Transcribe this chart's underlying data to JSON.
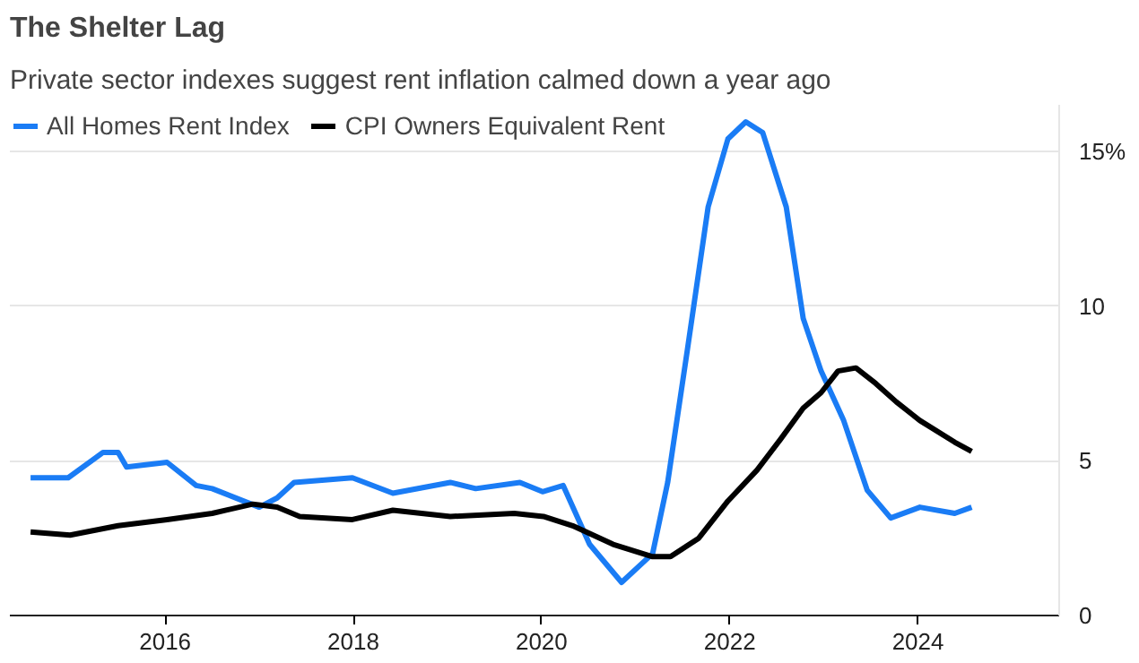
{
  "chart_data": {
    "type": "line",
    "title": "The Shelter Lag",
    "subtitle": "Private sector indexes suggest rent inflation calmed down a year ago",
    "xlim": [
      2014.35,
      2025.5
    ],
    "xticks": [
      {
        "value": 2016,
        "label": "2016"
      },
      {
        "value": 2018,
        "label": "2018"
      },
      {
        "value": 2020,
        "label": "2020"
      },
      {
        "value": 2022,
        "label": "2022"
      },
      {
        "value": 2024,
        "label": "2024"
      }
    ],
    "ylim": [
      0,
      16.5
    ],
    "yticks": [
      0,
      5,
      10,
      {
        "value": 15,
        "label": "15%"
      }
    ],
    "grid": "y",
    "legend": "top left",
    "line_style": "solid",
    "series": [
      {
        "name": "All Homes Rent Index",
        "color": "#1a7cf5",
        "x": [
          2014.57,
          2014.97,
          2015.34,
          2015.5,
          2015.59,
          2016.02,
          2016.33,
          2016.5,
          2017.0,
          2017.19,
          2017.37,
          2017.99,
          2018.42,
          2019.03,
          2019.3,
          2019.77,
          2020.01,
          2020.23,
          2020.51,
          2020.85,
          2021.18,
          2021.34,
          2021.55,
          2021.77,
          2021.98,
          2022.17,
          2022.35,
          2022.6,
          2022.78,
          2022.97,
          2023.21,
          2023.46,
          2023.71,
          2024.02,
          2024.39,
          2024.57
        ],
        "values": [
          4.45,
          4.45,
          5.27,
          5.27,
          4.8,
          4.95,
          4.2,
          4.1,
          3.5,
          3.8,
          4.3,
          4.45,
          3.95,
          4.3,
          4.1,
          4.3,
          4.0,
          4.2,
          2.3,
          1.07,
          2.0,
          4.3,
          8.6,
          13.2,
          15.4,
          15.95,
          15.6,
          13.2,
          9.6,
          7.9,
          6.3,
          4.05,
          3.15,
          3.5,
          3.3,
          3.5
        ]
      },
      {
        "name": "CPI Owners Equivalent Rent",
        "color": "#000000",
        "x": [
          2014.57,
          2014.99,
          2015.5,
          2016.02,
          2016.5,
          2016.93,
          2017.19,
          2017.43,
          2017.99,
          2018.42,
          2019.03,
          2019.71,
          2020.02,
          2020.33,
          2020.76,
          2021.18,
          2021.37,
          2021.67,
          2021.98,
          2022.29,
          2022.54,
          2022.78,
          2022.97,
          2023.15,
          2023.34,
          2023.55,
          2023.77,
          2024.02,
          2024.39,
          2024.57
        ],
        "values": [
          2.7,
          2.6,
          2.9,
          3.1,
          3.3,
          3.6,
          3.5,
          3.2,
          3.1,
          3.4,
          3.2,
          3.3,
          3.2,
          2.9,
          2.3,
          1.9,
          1.9,
          2.5,
          3.7,
          4.7,
          5.7,
          6.7,
          7.2,
          7.9,
          8.0,
          7.5,
          6.9,
          6.3,
          5.6,
          5.3
        ]
      }
    ]
  }
}
